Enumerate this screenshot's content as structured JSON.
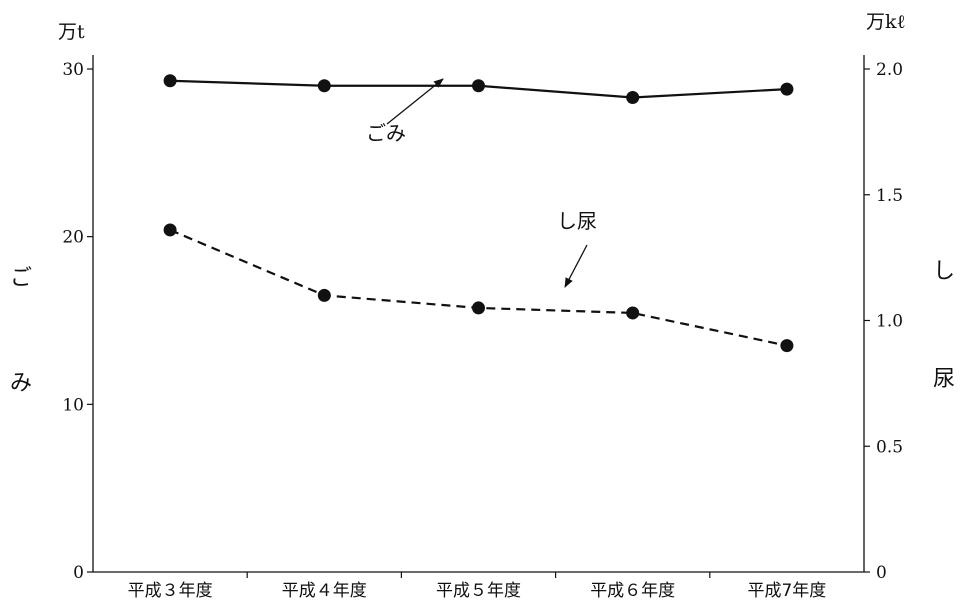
{
  "chart_data": {
    "type": "line",
    "categories": [
      "平成３年度",
      "平成４年度",
      "平成５年度",
      "平成６年度",
      "平成7年度"
    ],
    "y_left": {
      "unit_label": "万t",
      "label_chars": [
        "ご",
        "み"
      ],
      "range": [
        0,
        30
      ],
      "ticks": [
        "0",
        "10",
        "20",
        "30"
      ]
    },
    "y_right": {
      "unit_label": "万kℓ",
      "label_chars": [
        "し",
        "尿"
      ],
      "range": [
        0,
        2.0
      ],
      "ticks": [
        "0",
        "0.5",
        "1.0",
        "1.5",
        "2.0"
      ]
    },
    "series": [
      {
        "name": "ごみ",
        "axis": "left",
        "line": "solid",
        "values": [
          29.3,
          29.0,
          29.0,
          28.3,
          28.8
        ]
      },
      {
        "name": "し尿",
        "axis": "right",
        "line": "dashed",
        "values": [
          1.36,
          1.1,
          1.05,
          1.03,
          0.9
        ]
      }
    ],
    "annotations": [
      {
        "text": "ごみ",
        "series": 0
      },
      {
        "text": "し尿",
        "series": 1
      }
    ],
    "grid": false
  }
}
